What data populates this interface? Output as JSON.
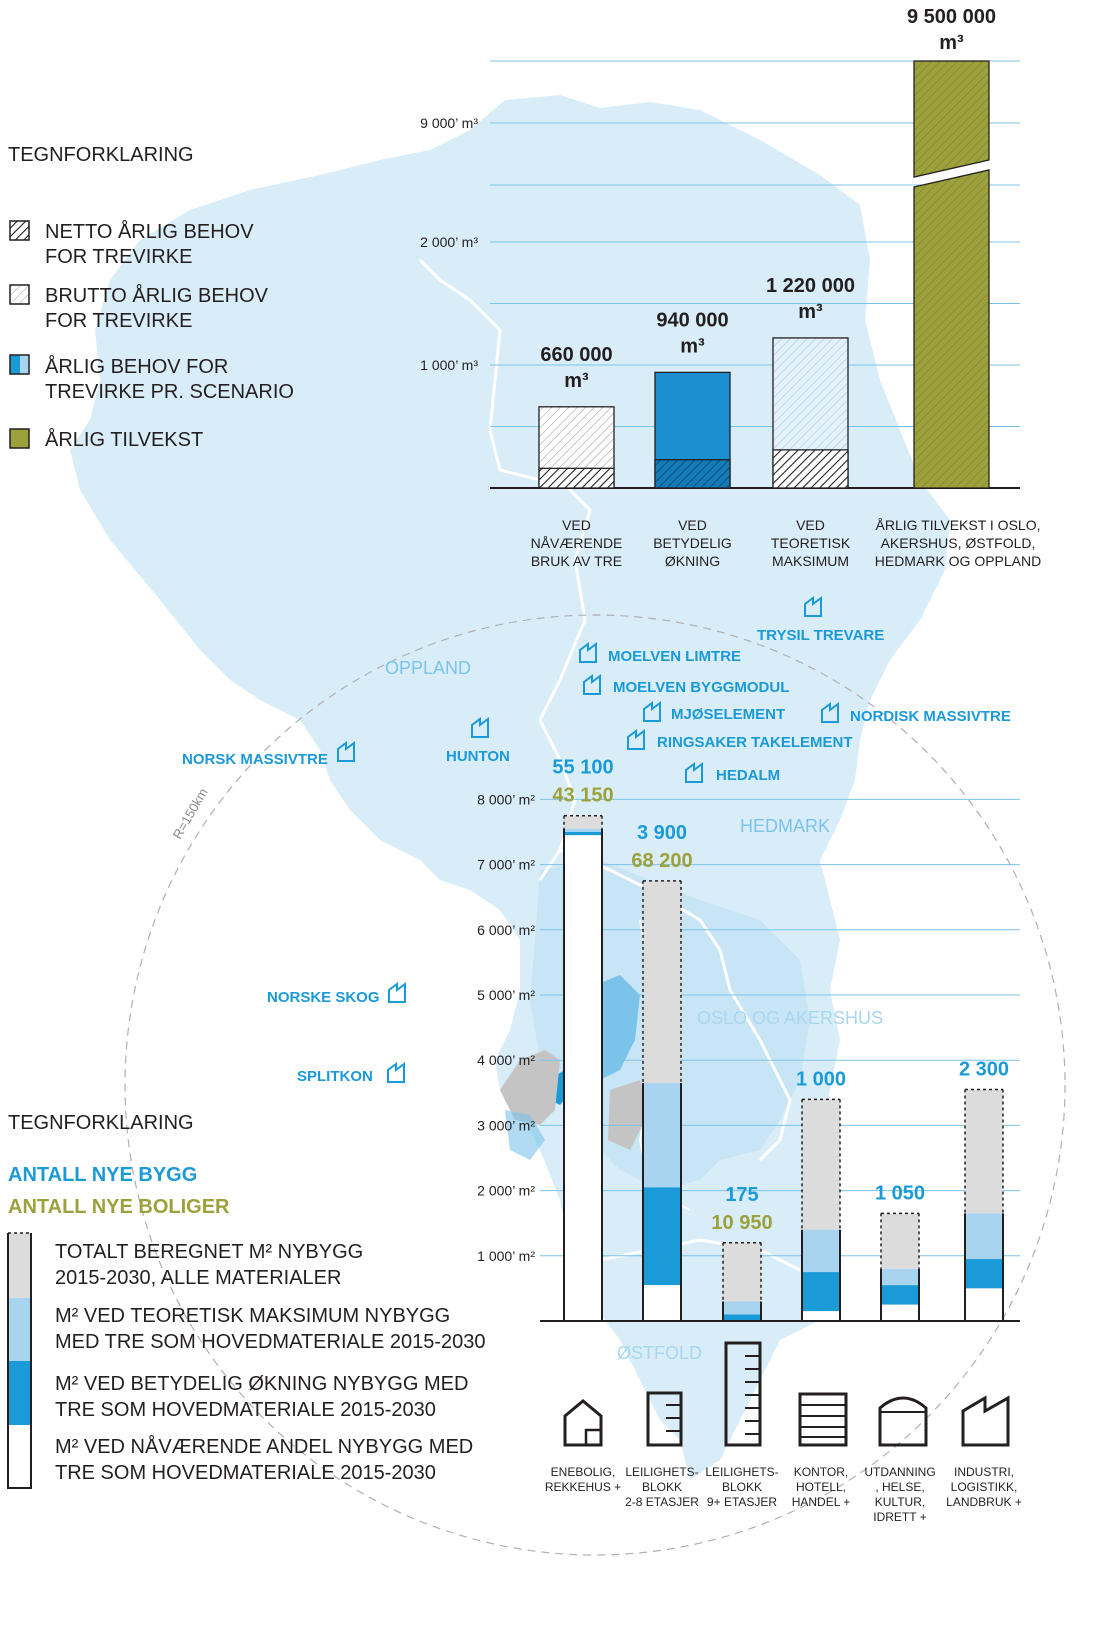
{
  "legend_top": {
    "title": "TEGNFORKLARING",
    "items": [
      {
        "lines": [
          "NETTO ÅRLIG BEHOV",
          "FOR TREVIRKE"
        ],
        "symbol": "netto"
      },
      {
        "lines": [
          "BRUTTO ÅRLIG BEHOV",
          "FOR TREVIRKE"
        ],
        "symbol": "brutto"
      },
      {
        "lines": [
          "ÅRLIG BEHOV FOR",
          "TREVIRKE PR. SCENARIO"
        ],
        "symbol": "scenario"
      },
      {
        "lines": [
          "ÅRLIG TILVEKST"
        ],
        "symbol": "tilvekst"
      }
    ]
  },
  "legend_bottom": {
    "title": "TEGNFORKLARING",
    "count_buildings": "ANTALL NYE BYGG",
    "count_homes": "ANTALL NYE BOLIGER",
    "items": [
      {
        "lines": [
          "TOTALT BEREGNET M² NYBYGG",
          "2015-2030, ALLE MATERIALER"
        ],
        "symbol": "total"
      },
      {
        "lines": [
          "M²  VED TEORETISK MAKSIMUM NYBYGG",
          "MED TRE SOM HOVEDMATERIALE 2015-2030"
        ],
        "symbol": "maks"
      },
      {
        "lines": [
          "M² VED BETYDELIG ØKNING NYBYGG MED",
          "TRE SOM HOVEDMATERIALE 2015-2030"
        ],
        "symbol": "betydelig"
      },
      {
        "lines": [
          "M² VED NÅVÆRENDE ANDEL NYBYGG MED",
          "TRE SOM HOVEDMATERIALE 2015-2030"
        ],
        "symbol": "naa"
      }
    ]
  },
  "map": {
    "regions": [
      "OPPLAND",
      "HEDMARK",
      "OSLO OG AKERSHUS",
      "ØSTFOLD"
    ],
    "radius_label": "R=150km",
    "factories": [
      "TRYSIL TREVARE",
      "MOELVEN LIMTRE",
      "MOELVEN BYGGMODUL",
      "MJØSELEMENT",
      "NORDISK MASSIVTRE",
      "RINGSAKER TAKELEMENT",
      "HEDALM",
      "HUNTON",
      "NORSK MASSIVTRE",
      "NORSKE SKOG",
      "SPLITKON"
    ]
  },
  "colors": {
    "map_fill": "#d8edf8",
    "light_blue": "#a8d4f0",
    "mid_blue": "#1b9ad8",
    "dark_blue": "#0f6ea8",
    "olive": "#9ca13b",
    "gray": "#dcdcdc",
    "text": "#231f20"
  },
  "chart_data": [
    {
      "type": "bar",
      "unit": "m³",
      "y_ticks": [
        "1 000’ m³",
        "2 000’ m³",
        "9 000’ m³"
      ],
      "axis_break": true,
      "categories": [
        [
          "VED",
          "NÅVÆRENDE",
          "BRUK AV TRE"
        ],
        [
          "VED",
          "BETYDELIG",
          "ØKNING"
        ],
        [
          "VED",
          "TEORETISK",
          "MAKSIMUM"
        ],
        [
          "ÅRLIG TILVEKST I OSLO,",
          "AKERSHUS, ØSTFOLD,",
          "HEDMARK OG OPPLAND"
        ]
      ],
      "value_labels": [
        [
          "660 000",
          "m³"
        ],
        [
          "940 000",
          "m³"
        ],
        [
          "1 220 000",
          "m³"
        ],
        [
          "9 500 000",
          "m³"
        ]
      ],
      "series": [
        {
          "name": "BRUTTO ÅRLIG BEHOV FOR TREVIRKE",
          "values": [
            660000,
            940000,
            1220000,
            null
          ]
        },
        {
          "name": "NETTO ÅRLIG BEHOV FOR TREVIRKE",
          "values": [
            160000,
            230000,
            310000,
            null
          ]
        },
        {
          "name": "ÅRLIG TILVEKST",
          "values": [
            null,
            null,
            null,
            9500000
          ]
        }
      ]
    },
    {
      "type": "bar",
      "unit": "m²",
      "y_ticks": [
        "1 000’ m²",
        "2 000’ m²",
        "3 000’ m²",
        "4 000’ m²",
        "5 000’ m²",
        "6 000’ m²",
        "7 000’ m²",
        "8 000’ m²"
      ],
      "ylim": [
        0,
        8000
      ],
      "categories": [
        [
          "ENEBOLIG,",
          "REKKEHUS +"
        ],
        [
          "LEILIGHETS-",
          "BLOKK",
          "2-8 ETASJER"
        ],
        [
          "LEILIGHETS-",
          "BLOKK",
          "9+ ETASJER"
        ],
        [
          "KONTOR,",
          "HOTELL,",
          "HANDEL +"
        ],
        [
          "UTDANNING",
          ", HELSE,",
          "KULTUR,",
          "IDRETT +"
        ],
        [
          "INDUSTRI,",
          "LOGISTIKK,",
          "LANDBRUK +"
        ]
      ],
      "new_buildings": [
        "55 100",
        "3 900",
        "175",
        "1 000",
        "1 050",
        "2 300"
      ],
      "new_homes": [
        "43 150",
        "68 200",
        "10 950",
        "",
        "",
        ""
      ],
      "series": [
        {
          "name": "TOTALT BEREGNET M² NYBYGG 2015-2030, ALLE MATERIALER",
          "values": [
            7750,
            6750,
            1200,
            3400,
            1650,
            3550
          ]
        },
        {
          "name": "M² VED TEORETISK MAKSIMUM NYBYGG MED TRE SOM HOVEDMATERIALE 2015-2030",
          "values": [
            7550,
            3650,
            300,
            1400,
            800,
            1650
          ]
        },
        {
          "name": "M² VED BETYDELIG ØKNING NYBYGG MED TRE SOM HOVEDMATERIALE 2015-2030",
          "values": [
            7500,
            2050,
            100,
            750,
            550,
            950
          ]
        },
        {
          "name": "M² VED NÅVÆRENDE ANDEL NYBYGG MED TRE SOM HOVEDMATERIALE 2015-2030",
          "values": [
            7450,
            550,
            0,
            150,
            250,
            500
          ]
        }
      ]
    }
  ]
}
